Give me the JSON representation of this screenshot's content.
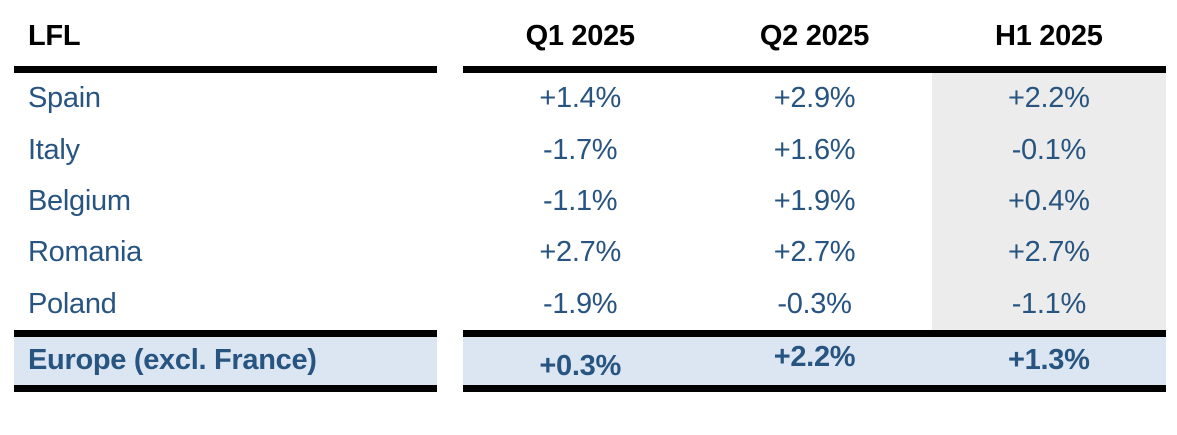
{
  "chart_data": {
    "type": "table",
    "title": "LFL",
    "columns": [
      "Q1 2025",
      "Q2 2025",
      "H1 2025"
    ],
    "rows": [
      {
        "label": "Spain",
        "values": [
          "+1.4%",
          "+2.9%",
          "+2.2%"
        ],
        "values_pct": [
          1.4,
          2.9,
          2.2
        ]
      },
      {
        "label": "Italy",
        "values": [
          "-1.7%",
          "+1.6%",
          "-0.1%"
        ],
        "values_pct": [
          -1.7,
          1.6,
          -0.1
        ]
      },
      {
        "label": "Belgium",
        "values": [
          "-1.1%",
          "+1.9%",
          "+0.4%"
        ],
        "values_pct": [
          -1.1,
          1.9,
          0.4
        ]
      },
      {
        "label": "Romania",
        "values": [
          "+2.7%",
          "+2.7%",
          "+2.7%"
        ],
        "values_pct": [
          2.7,
          2.7,
          2.7
        ]
      },
      {
        "label": "Poland",
        "values": [
          "-1.9%",
          "-0.3%",
          "-1.1%"
        ],
        "values_pct": [
          -1.9,
          -0.3,
          -1.1
        ]
      }
    ],
    "total_row": {
      "label": "Europe (excl. France)",
      "values": [
        "+0.3%",
        "+2.2%",
        "+1.3%"
      ],
      "values_pct": [
        0.3,
        2.2,
        1.3
      ]
    },
    "highlighted_column": "H1 2025",
    "layout_hints": {
      "highlighted_column_bg": "#ECECEC",
      "total_row_bg": "#DCE6F2",
      "rule_color": "#000000",
      "value_text_color": "#275480",
      "header_text_color": "#000000",
      "grid": "off"
    }
  }
}
